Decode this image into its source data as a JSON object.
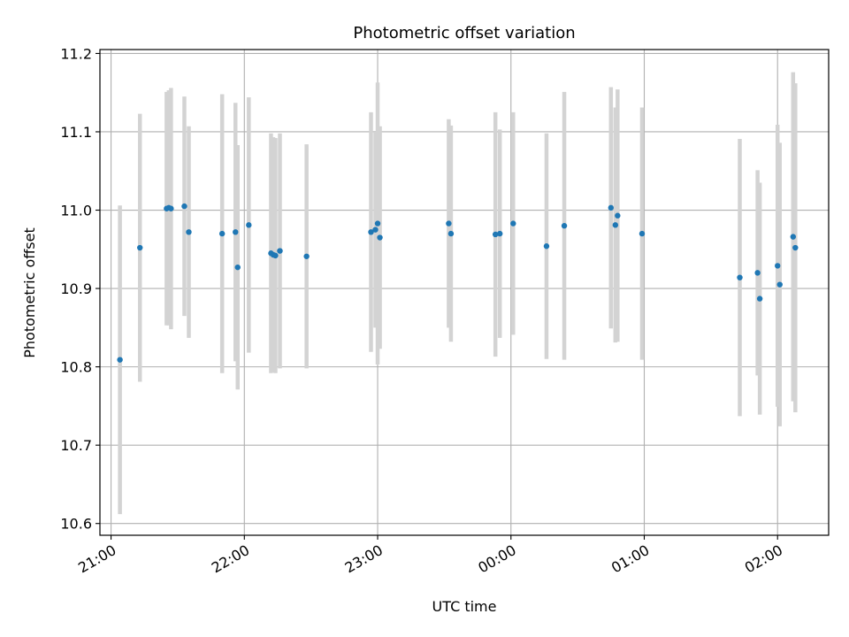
{
  "chart_data": {
    "type": "scatter",
    "title": "Photometric offset variation",
    "xlabel": "UTC time",
    "ylabel": "Photometric offset",
    "x_unit": "UTC hours of the night (date not printed)",
    "xlim": [
      "20:55",
      "02:23"
    ],
    "ylim": [
      10.585,
      11.205
    ],
    "x_ticks": [
      "21:00",
      "22:00",
      "23:00",
      "00:00",
      "01:00",
      "02:00"
    ],
    "y_ticks": [
      "10.6",
      "10.7",
      "10.8",
      "10.9",
      "11.0",
      "11.1",
      "11.2"
    ],
    "grid": true,
    "colors": {
      "point": "#1f77b4",
      "errorbar": "#d3d3d3",
      "grid": "#b0b0b0"
    },
    "points": [
      {
        "t": "21:04",
        "y": 10.809,
        "err": 0.197
      },
      {
        "t": "21:13",
        "y": 10.952,
        "err": 0.171
      },
      {
        "t": "21:25",
        "y": 11.002,
        "err": 0.149
      },
      {
        "t": "21:26",
        "y": 11.003,
        "err": 0.15
      },
      {
        "t": "21:27",
        "y": 11.002,
        "err": 0.154
      },
      {
        "t": "21:33",
        "y": 11.005,
        "err": 0.14
      },
      {
        "t": "21:35",
        "y": 10.972,
        "err": 0.135
      },
      {
        "t": "21:50",
        "y": 10.97,
        "err": 0.178
      },
      {
        "t": "21:56",
        "y": 10.972,
        "err": 0.165
      },
      {
        "t": "21:57",
        "y": 10.927,
        "err": 0.156
      },
      {
        "t": "22:02",
        "y": 10.981,
        "err": 0.163
      },
      {
        "t": "22:12",
        "y": 10.945,
        "err": 0.153
      },
      {
        "t": "22:13",
        "y": 10.943,
        "err": 0.15
      },
      {
        "t": "22:14",
        "y": 10.942,
        "err": 0.15
      },
      {
        "t": "22:16",
        "y": 10.948,
        "err": 0.15
      },
      {
        "t": "22:28",
        "y": 10.941,
        "err": 0.143
      },
      {
        "t": "22:57",
        "y": 10.972,
        "err": 0.153
      },
      {
        "t": "22:59",
        "y": 10.975,
        "err": 0.125
      },
      {
        "t": "23:00",
        "y": 10.983,
        "err": 0.18
      },
      {
        "t": "23:01",
        "y": 10.965,
        "err": 0.142
      },
      {
        "t": "23:32",
        "y": 10.983,
        "err": 0.133
      },
      {
        "t": "23:33",
        "y": 10.97,
        "err": 0.138
      },
      {
        "t": "23:53",
        "y": 10.969,
        "err": 0.156
      },
      {
        "t": "23:55",
        "y": 10.97,
        "err": 0.133
      },
      {
        "t": "00:01",
        "y": 10.983,
        "err": 0.142
      },
      {
        "t": "00:16",
        "y": 10.954,
        "err": 0.144
      },
      {
        "t": "00:24",
        "y": 10.98,
        "err": 0.171
      },
      {
        "t": "00:45",
        "y": 11.003,
        "err": 0.154
      },
      {
        "t": "00:47",
        "y": 10.981,
        "err": 0.15
      },
      {
        "t": "00:48",
        "y": 10.993,
        "err": 0.161
      },
      {
        "t": "00:59",
        "y": 10.97,
        "err": 0.161
      },
      {
        "t": "01:43",
        "y": 10.914,
        "err": 0.177
      },
      {
        "t": "01:51",
        "y": 10.92,
        "err": 0.131
      },
      {
        "t": "01:52",
        "y": 10.887,
        "err": 0.148
      },
      {
        "t": "02:00",
        "y": 10.929,
        "err": 0.18
      },
      {
        "t": "02:01",
        "y": 10.905,
        "err": 0.181
      },
      {
        "t": "02:07",
        "y": 10.966,
        "err": 0.21
      },
      {
        "t": "02:08",
        "y": 10.952,
        "err": 0.21
      }
    ]
  }
}
